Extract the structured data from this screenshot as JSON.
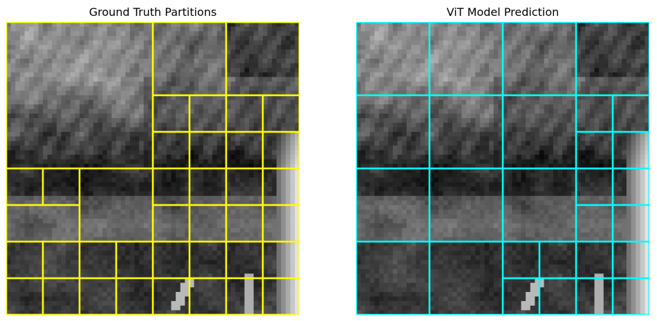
{
  "chart_data": [
    {
      "type": "image-partition",
      "title": "Ground Truth Partitions",
      "grid_size": 64,
      "line_color": "#ffff00",
      "blocks": [
        [
          0,
          0,
          32,
          32
        ],
        [
          32,
          0,
          16,
          16
        ],
        [
          48,
          0,
          16,
          16
        ],
        [
          32,
          16,
          8,
          8
        ],
        [
          40,
          16,
          8,
          8
        ],
        [
          48,
          16,
          8,
          8
        ],
        [
          56,
          16,
          8,
          8
        ],
        [
          32,
          24,
          8,
          8
        ],
        [
          40,
          24,
          8,
          8
        ],
        [
          48,
          24,
          8,
          8
        ],
        [
          56,
          24,
          8,
          8
        ],
        [
          0,
          32,
          8,
          8
        ],
        [
          8,
          32,
          8,
          8
        ],
        [
          16,
          32,
          16,
          16
        ],
        [
          0,
          40,
          16,
          8
        ],
        [
          32,
          32,
          8,
          8
        ],
        [
          40,
          32,
          8,
          8
        ],
        [
          48,
          32,
          8,
          8
        ],
        [
          56,
          32,
          8,
          8
        ],
        [
          32,
          40,
          8,
          8
        ],
        [
          40,
          40,
          8,
          8
        ],
        [
          48,
          40,
          8,
          8
        ],
        [
          56,
          40,
          8,
          8
        ],
        [
          0,
          48,
          8,
          8
        ],
        [
          8,
          48,
          8,
          8
        ],
        [
          16,
          48,
          8,
          8
        ],
        [
          24,
          48,
          8,
          8
        ],
        [
          0,
          56,
          8,
          8
        ],
        [
          8,
          56,
          8,
          8
        ],
        [
          16,
          56,
          8,
          8
        ],
        [
          24,
          56,
          8,
          8
        ],
        [
          32,
          48,
          8,
          8
        ],
        [
          40,
          48,
          8,
          8
        ],
        [
          48,
          48,
          8,
          8
        ],
        [
          56,
          48,
          8,
          8
        ],
        [
          32,
          56,
          8,
          8
        ],
        [
          40,
          56,
          8,
          8
        ],
        [
          48,
          56,
          8,
          8
        ],
        [
          56,
          56,
          8,
          8
        ]
      ]
    },
    {
      "type": "image-partition",
      "title": "ViT Model Prediction",
      "grid_size": 64,
      "line_color": "#00ffff",
      "blocks": [
        [
          0,
          0,
          16,
          16
        ],
        [
          16,
          0,
          16,
          16
        ],
        [
          32,
          0,
          16,
          16
        ],
        [
          48,
          0,
          16,
          16
        ],
        [
          0,
          16,
          16,
          16
        ],
        [
          16,
          16,
          16,
          16
        ],
        [
          32,
          16,
          16,
          16
        ],
        [
          48,
          16,
          8,
          8
        ],
        [
          56,
          16,
          8,
          8
        ],
        [
          48,
          24,
          8,
          8
        ],
        [
          56,
          24,
          8,
          8
        ],
        [
          0,
          32,
          16,
          16
        ],
        [
          16,
          32,
          16,
          16
        ],
        [
          32,
          32,
          16,
          16
        ],
        [
          48,
          32,
          8,
          8
        ],
        [
          56,
          32,
          8,
          8
        ],
        [
          48,
          40,
          8,
          8
        ],
        [
          56,
          40,
          8,
          8
        ],
        [
          0,
          48,
          16,
          16
        ],
        [
          16,
          48,
          16,
          16
        ],
        [
          32,
          48,
          8,
          8
        ],
        [
          40,
          48,
          8,
          8
        ],
        [
          32,
          56,
          8,
          8
        ],
        [
          40,
          56,
          8,
          8
        ],
        [
          48,
          48,
          8,
          8
        ],
        [
          56,
          48,
          8,
          8
        ],
        [
          48,
          56,
          8,
          8
        ],
        [
          56,
          56,
          8,
          8
        ]
      ]
    }
  ]
}
